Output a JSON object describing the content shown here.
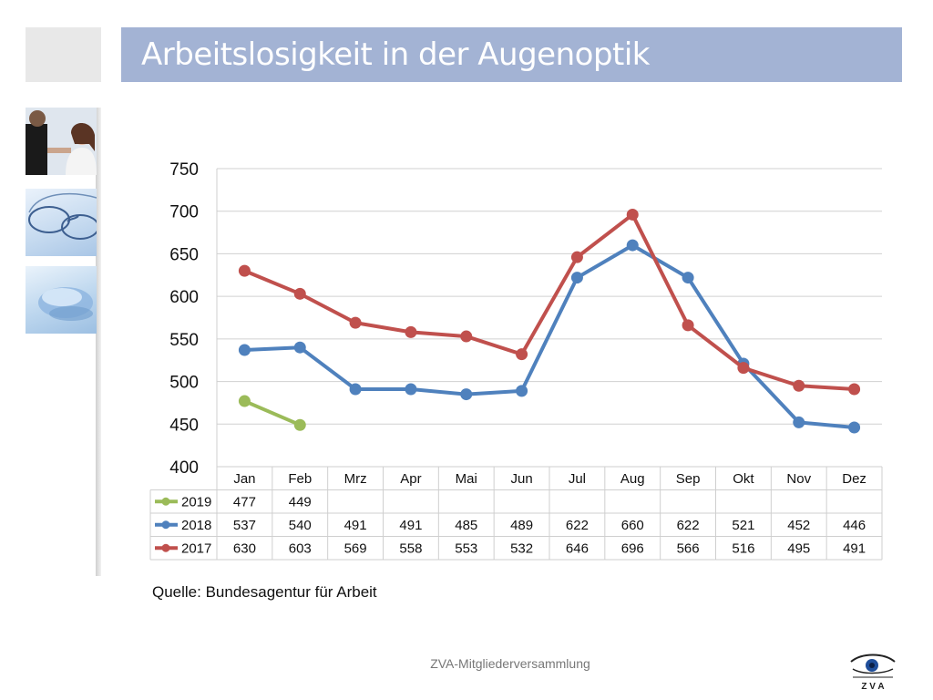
{
  "slide": {
    "title": "Arbeitslosigkeit in der Augenoptik",
    "source": "Quelle: Bundesagentur für Arbeit",
    "footer": "ZVA-Mitgliederversammlung",
    "logo_text": "Z V A",
    "images": [
      "optician-customer-photo",
      "eyeglasses-photo",
      "contact-lens-photo"
    ],
    "colors": {
      "title_bar": "#a3b3d4",
      "title_text": "#ffffff"
    }
  },
  "chart_data": {
    "type": "line",
    "categories": [
      "Jan",
      "Feb",
      "Mrz",
      "Apr",
      "Mai",
      "Jun",
      "Jul",
      "Aug",
      "Sep",
      "Okt",
      "Nov",
      "Dez"
    ],
    "ylim": [
      400,
      750
    ],
    "yticks": [
      400,
      450,
      500,
      550,
      600,
      650,
      700,
      750
    ],
    "grid": true,
    "legend": "data-table",
    "series": [
      {
        "name": "2019",
        "color": "#9bbb59",
        "values": [
          477,
          449,
          null,
          null,
          null,
          null,
          null,
          null,
          null,
          null,
          null,
          null
        ]
      },
      {
        "name": "2018",
        "color": "#4f81bd",
        "values": [
          537,
          540,
          491,
          491,
          485,
          489,
          622,
          660,
          622,
          521,
          452,
          446
        ]
      },
      {
        "name": "2017",
        "color": "#c0504d",
        "values": [
          630,
          603,
          569,
          558,
          553,
          532,
          646,
          696,
          566,
          516,
          495,
          491
        ]
      }
    ]
  }
}
